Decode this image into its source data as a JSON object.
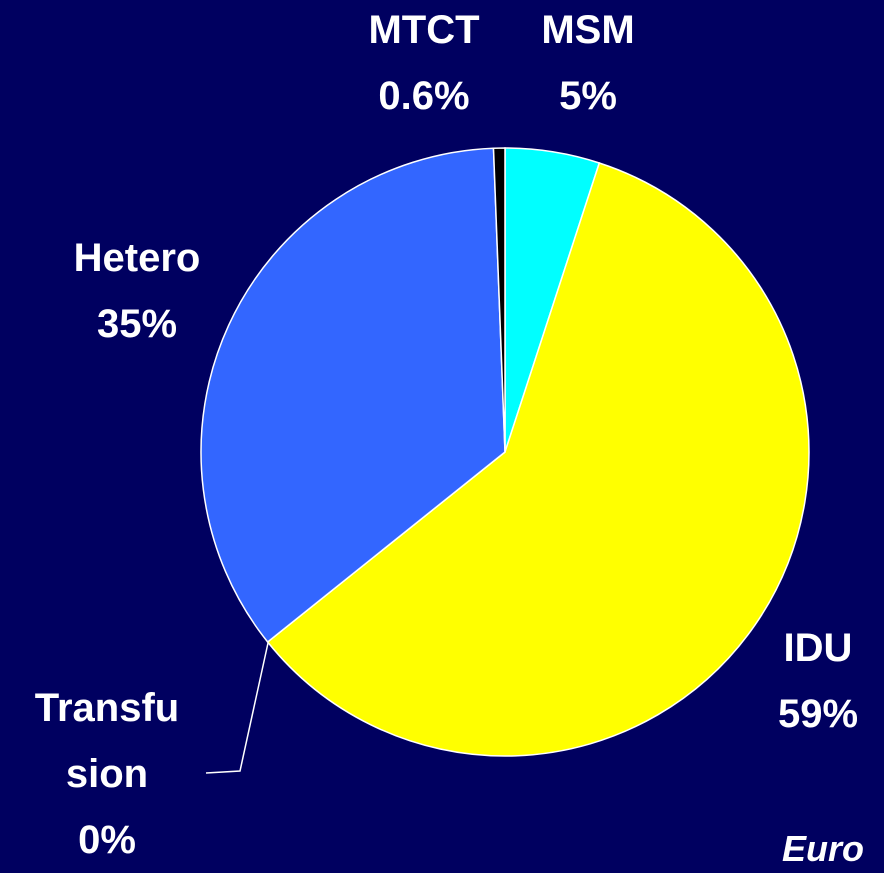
{
  "chart_data": {
    "type": "pie",
    "categories": [
      "MSM",
      "IDU",
      "Transfusion",
      "Hetero",
      "MTCT"
    ],
    "values": [
      5,
      59,
      0,
      35,
      0.6
    ],
    "value_labels": [
      "5%",
      "59%",
      "0%",
      "35%",
      "0.6%"
    ],
    "colors": [
      "#00ffff",
      "#ffff00",
      "#ffffff",
      "#3366ff",
      "#000000"
    ],
    "note": "Euro"
  }
}
